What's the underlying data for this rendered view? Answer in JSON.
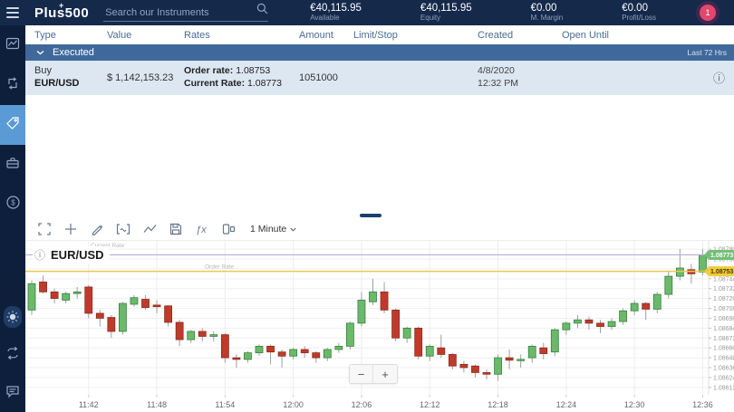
{
  "palette": {
    "navy": "#15294b",
    "sidebar": "#0e1f3c",
    "selected": "#5b9bd5",
    "group_bar": "#40699b",
    "row_bg": "#dce7f2",
    "header_text": "#4a6d94",
    "badge_pink": "#e0486e"
  },
  "topbar": {
    "logo_text": "Plus500",
    "logo_plus": "+",
    "search_placeholder": "Search our Instruments",
    "stats": [
      {
        "value": "€40,115.95",
        "label": "Available"
      },
      {
        "value": "€40,115.95",
        "label": "Equity"
      },
      {
        "value": "€0.00",
        "label": "M. Margin"
      },
      {
        "value": "€0.00",
        "label": "Profit/Loss"
      }
    ],
    "notification_count": "1"
  },
  "sidebar": {
    "items": [
      {
        "name": "trade",
        "icon": "line-chart-icon",
        "selected": false
      },
      {
        "name": "positions",
        "icon": "arrows-icon",
        "selected": false
      },
      {
        "name": "orders",
        "icon": "tag-icon",
        "selected": true
      },
      {
        "name": "portfolio",
        "icon": "briefcase-icon",
        "selected": false
      },
      {
        "name": "funds",
        "icon": "coin-icon",
        "selected": false
      },
      {
        "name": "theme",
        "icon": "sun-icon",
        "selected": false
      },
      {
        "name": "switch-account",
        "icon": "repeat-icon",
        "selected": false
      },
      {
        "name": "support-chat",
        "icon": "chat-icon",
        "selected": false
      }
    ]
  },
  "orders_table": {
    "headers": [
      "Type",
      "Value",
      "Rates",
      "Amount",
      "Limit/Stop",
      "Created",
      "Open Until"
    ],
    "group": {
      "label": "Executed",
      "range_label": "Last 72 Hrs"
    },
    "rows": [
      {
        "type_line1": "Buy",
        "type_line2": "EUR/USD",
        "value": "$ 1,142,153.23",
        "rate_label1": "Order rate:",
        "rate_value1": "1.08753",
        "rate_label2": "Current Rate:",
        "rate_value2": "1.08773",
        "amount": "1051000",
        "created_date": "4/8/2020",
        "created_time": "12:32 PM",
        "info_icon": "ⓘ"
      }
    ]
  },
  "chart_toolbar": {
    "interval_label": "1 Minute",
    "icons": [
      "expand-icon",
      "crosshair-icon",
      "pencil-icon",
      "chart-type-icon",
      "indicator-line-icon",
      "save-icon",
      "fx-icon",
      "compare-icon"
    ]
  },
  "chart": {
    "info_icon": "ⓘ",
    "zoom_out": "−",
    "zoom_in": "+"
  },
  "chart_data": {
    "type": "candlestick",
    "title": "EUR/USD",
    "interval": "1 Minute",
    "start_time": "11:37",
    "x_labels": [
      "11:42",
      "11:48",
      "11:54",
      "12:00",
      "12:06",
      "12:12",
      "12:18",
      "12:24",
      "12:30",
      "12:36"
    ],
    "x_label_indices": [
      5,
      11,
      17,
      23,
      29,
      35,
      41,
      47,
      53,
      59
    ],
    "y_ticks": [
      1.0878,
      1.08768,
      1.08756,
      1.08744,
      1.08732,
      1.0872,
      1.08708,
      1.08696,
      1.08684,
      1.08672,
      1.0866,
      1.08648,
      1.08636,
      1.08624,
      1.08612
    ],
    "y_range": [
      1.08603,
      1.0879
    ],
    "grid": true,
    "order_rate": 1.08753,
    "current_rate": 1.08773,
    "order_line_label": "Order Rate",
    "current_line_label": "Current Rate",
    "up_color": "#6cb96c",
    "up_border": "#35813b",
    "down_color": "#c03a2b",
    "down_border": "#8e2a1c",
    "wick_color": "#9aa0a6",
    "order_line_color": "#e9c94e",
    "order_badge_color": "#f0cb3c",
    "current_line_color": "#b6abdc",
    "current_badge_color": "#74bf76",
    "candles": [
      [
        1.08706,
        1.08742,
        1.087,
        1.08738
      ],
      [
        1.0874,
        1.08748,
        1.08726,
        1.08728
      ],
      [
        1.08728,
        1.08732,
        1.08714,
        1.0872
      ],
      [
        1.08718,
        1.08728,
        1.08714,
        1.08726
      ],
      [
        1.08726,
        1.08734,
        1.0872,
        1.08728
      ],
      [
        1.08734,
        1.08736,
        1.08696,
        1.08702
      ],
      [
        1.08702,
        1.08706,
        1.08686,
        1.08696
      ],
      [
        1.08697,
        1.087,
        1.08672,
        1.0868
      ],
      [
        1.0868,
        1.08716,
        1.08676,
        1.08714
      ],
      [
        1.08713,
        1.08724,
        1.0871,
        1.08721
      ],
      [
        1.08719,
        1.08724,
        1.08706,
        1.08709
      ],
      [
        1.08712,
        1.08718,
        1.08702,
        1.0871
      ],
      [
        1.08711,
        1.08712,
        1.08686,
        1.08691
      ],
      [
        1.08691,
        1.08694,
        1.08662,
        1.0867
      ],
      [
        1.0867,
        1.08682,
        1.08666,
        1.0868
      ],
      [
        1.0868,
        1.08684,
        1.08668,
        1.08674
      ],
      [
        1.08674,
        1.0868,
        1.08668,
        1.08676
      ],
      [
        1.08676,
        1.08678,
        1.08642,
        1.08648
      ],
      [
        1.08648,
        1.08652,
        1.08636,
        1.08646
      ],
      [
        1.08646,
        1.08656,
        1.08642,
        1.08654
      ],
      [
        1.08654,
        1.08664,
        1.0865,
        1.08662
      ],
      [
        1.08662,
        1.08664,
        1.0864,
        1.08655
      ],
      [
        1.08655,
        1.08658,
        1.08636,
        1.0865
      ],
      [
        1.0865,
        1.0866,
        1.08646,
        1.08658
      ],
      [
        1.08658,
        1.08662,
        1.08648,
        1.08654
      ],
      [
        1.08654,
        1.08656,
        1.08642,
        1.08648
      ],
      [
        1.08648,
        1.0866,
        1.08644,
        1.08658
      ],
      [
        1.08658,
        1.08666,
        1.08654,
        1.08662
      ],
      [
        1.08662,
        1.08692,
        1.08658,
        1.0869
      ],
      [
        1.0869,
        1.08728,
        1.08686,
        1.08718
      ],
      [
        1.08716,
        1.08744,
        1.08712,
        1.08728
      ],
      [
        1.08728,
        1.0874,
        1.08702,
        1.08706
      ],
      [
        1.08706,
        1.08708,
        1.08668,
        1.08672
      ],
      [
        1.08672,
        1.08686,
        1.08666,
        1.08684
      ],
      [
        1.08684,
        1.08686,
        1.08646,
        1.0865
      ],
      [
        1.0865,
        1.08664,
        1.08644,
        1.08662
      ],
      [
        1.0866,
        1.08676,
        1.08648,
        1.08652
      ],
      [
        1.08652,
        1.08654,
        1.08634,
        1.08638
      ],
      [
        1.0864,
        1.08644,
        1.0863,
        1.08636
      ],
      [
        1.08638,
        1.0864,
        1.08624,
        1.0863
      ],
      [
        1.0863,
        1.08634,
        1.08622,
        1.08628
      ],
      [
        1.08628,
        1.08652,
        1.0862,
        1.08648
      ],
      [
        1.08648,
        1.08658,
        1.08634,
        1.08645
      ],
      [
        1.08645,
        1.08652,
        1.08636,
        1.08646
      ],
      [
        1.08648,
        1.08664,
        1.08642,
        1.08662
      ],
      [
        1.0866,
        1.08666,
        1.08646,
        1.08653
      ],
      [
        1.08655,
        1.08684,
        1.0865,
        1.08682
      ],
      [
        1.08682,
        1.08692,
        1.08676,
        1.0869
      ],
      [
        1.0869,
        1.087,
        1.08684,
        1.08694
      ],
      [
        1.08694,
        1.08698,
        1.08682,
        1.0869
      ],
      [
        1.0869,
        1.08694,
        1.08678,
        1.08686
      ],
      [
        1.08686,
        1.08696,
        1.08682,
        1.08692
      ],
      [
        1.08692,
        1.08708,
        1.08688,
        1.08705
      ],
      [
        1.08705,
        1.08718,
        1.087,
        1.08714
      ],
      [
        1.08714,
        1.08716,
        1.08694,
        1.08707
      ],
      [
        1.08707,
        1.08728,
        1.08702,
        1.08725
      ],
      [
        1.08725,
        1.08754,
        1.0872,
        1.08747
      ],
      [
        1.08747,
        1.0878,
        1.08742,
        1.08757
      ],
      [
        1.08755,
        1.08762,
        1.08738,
        1.0875
      ],
      [
        1.08752,
        1.0878,
        1.08748,
        1.08773
      ]
    ]
  }
}
